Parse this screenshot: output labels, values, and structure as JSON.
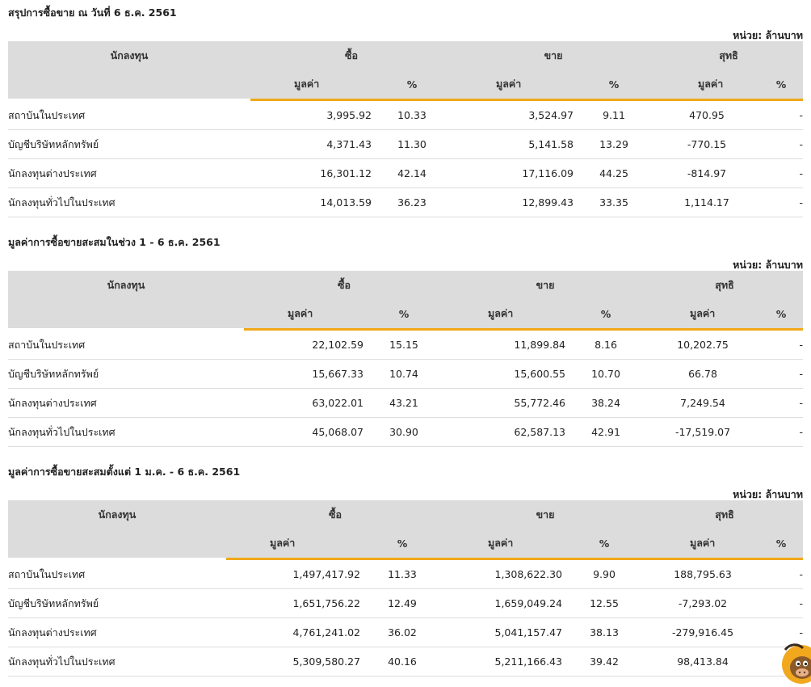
{
  "unit_label": "หน่วย: ล้านบาท",
  "headers": {
    "investor": "นักลงทุน",
    "buy": "ซื้อ",
    "sell": "ขาย",
    "net": "สุทธิ",
    "value": "มูลค่า",
    "pct": "%"
  },
  "sections": [
    {
      "title": "สรุปการซื้อขาย ณ วันที่ 6 ธ.ค. 2561",
      "rows": [
        {
          "name": "สถาบันในประเทศ",
          "buy_value": "3,995.92",
          "buy_pct": "10.33",
          "sell_value": "3,524.97",
          "sell_pct": "9.11",
          "net_value": "470.95",
          "net_pct": "-"
        },
        {
          "name": "บัญชีบริษัทหลักทรัพย์",
          "buy_value": "4,371.43",
          "buy_pct": "11.30",
          "sell_value": "5,141.58",
          "sell_pct": "13.29",
          "net_value": "-770.15",
          "net_pct": "-"
        },
        {
          "name": "นักลงทุนต่างประเทศ",
          "buy_value": "16,301.12",
          "buy_pct": "42.14",
          "sell_value": "17,116.09",
          "sell_pct": "44.25",
          "net_value": "-814.97",
          "net_pct": "-"
        },
        {
          "name": "นักลงทุนทั่วไปในประเทศ",
          "buy_value": "14,013.59",
          "buy_pct": "36.23",
          "sell_value": "12,899.43",
          "sell_pct": "33.35",
          "net_value": "1,114.17",
          "net_pct": "-"
        }
      ]
    },
    {
      "title": "มูลค่าการซื้อขายสะสมในช่วง 1 - 6 ธ.ค. 2561",
      "rows": [
        {
          "name": "สถาบันในประเทศ",
          "buy_value": "22,102.59",
          "buy_pct": "15.15",
          "sell_value": "11,899.84",
          "sell_pct": "8.16",
          "net_value": "10,202.75",
          "net_pct": "-"
        },
        {
          "name": "บัญชีบริษัทหลักทรัพย์",
          "buy_value": "15,667.33",
          "buy_pct": "10.74",
          "sell_value": "15,600.55",
          "sell_pct": "10.70",
          "net_value": "66.78",
          "net_pct": "-"
        },
        {
          "name": "นักลงทุนต่างประเทศ",
          "buy_value": "63,022.01",
          "buy_pct": "43.21",
          "sell_value": "55,772.46",
          "sell_pct": "38.24",
          "net_value": "7,249.54",
          "net_pct": "-"
        },
        {
          "name": "นักลงทุนทั่วไปในประเทศ",
          "buy_value": "45,068.07",
          "buy_pct": "30.90",
          "sell_value": "62,587.13",
          "sell_pct": "42.91",
          "net_value": "-17,519.07",
          "net_pct": "-"
        }
      ]
    },
    {
      "title": "มูลค่าการซื้อขายสะสมตั้งแต่ 1 ม.ค. - 6 ธ.ค. 2561",
      "rows": [
        {
          "name": "สถาบันในประเทศ",
          "buy_value": "1,497,417.92",
          "buy_pct": "11.33",
          "sell_value": "1,308,622.30",
          "sell_pct": "9.90",
          "net_value": "188,795.63",
          "net_pct": "-"
        },
        {
          "name": "บัญชีบริษัทหลักทรัพย์",
          "buy_value": "1,651,756.22",
          "buy_pct": "12.49",
          "sell_value": "1,659,049.24",
          "sell_pct": "12.55",
          "net_value": "-7,293.02",
          "net_pct": "-"
        },
        {
          "name": "นักลงทุนต่างประเทศ",
          "buy_value": "4,761,241.02",
          "buy_pct": "36.02",
          "sell_value": "5,041,157.47",
          "sell_pct": "38.13",
          "net_value": "-279,916.45",
          "net_pct": "-"
        },
        {
          "name": "นักลงทุนทั่วไปในประเทศ",
          "buy_value": "5,309,580.27",
          "buy_pct": "40.16",
          "sell_value": "5,211,166.43",
          "sell_pct": "39.42",
          "net_value": "98,413.84",
          "net_pct": "-"
        }
      ]
    }
  ],
  "colors": {
    "positive": "#1a8a1a",
    "negative": "#e0252a",
    "header_bg": "#dcdcdc",
    "accent_underline": "#f0a818"
  },
  "mascot_icon": "bull-mascot-icon"
}
